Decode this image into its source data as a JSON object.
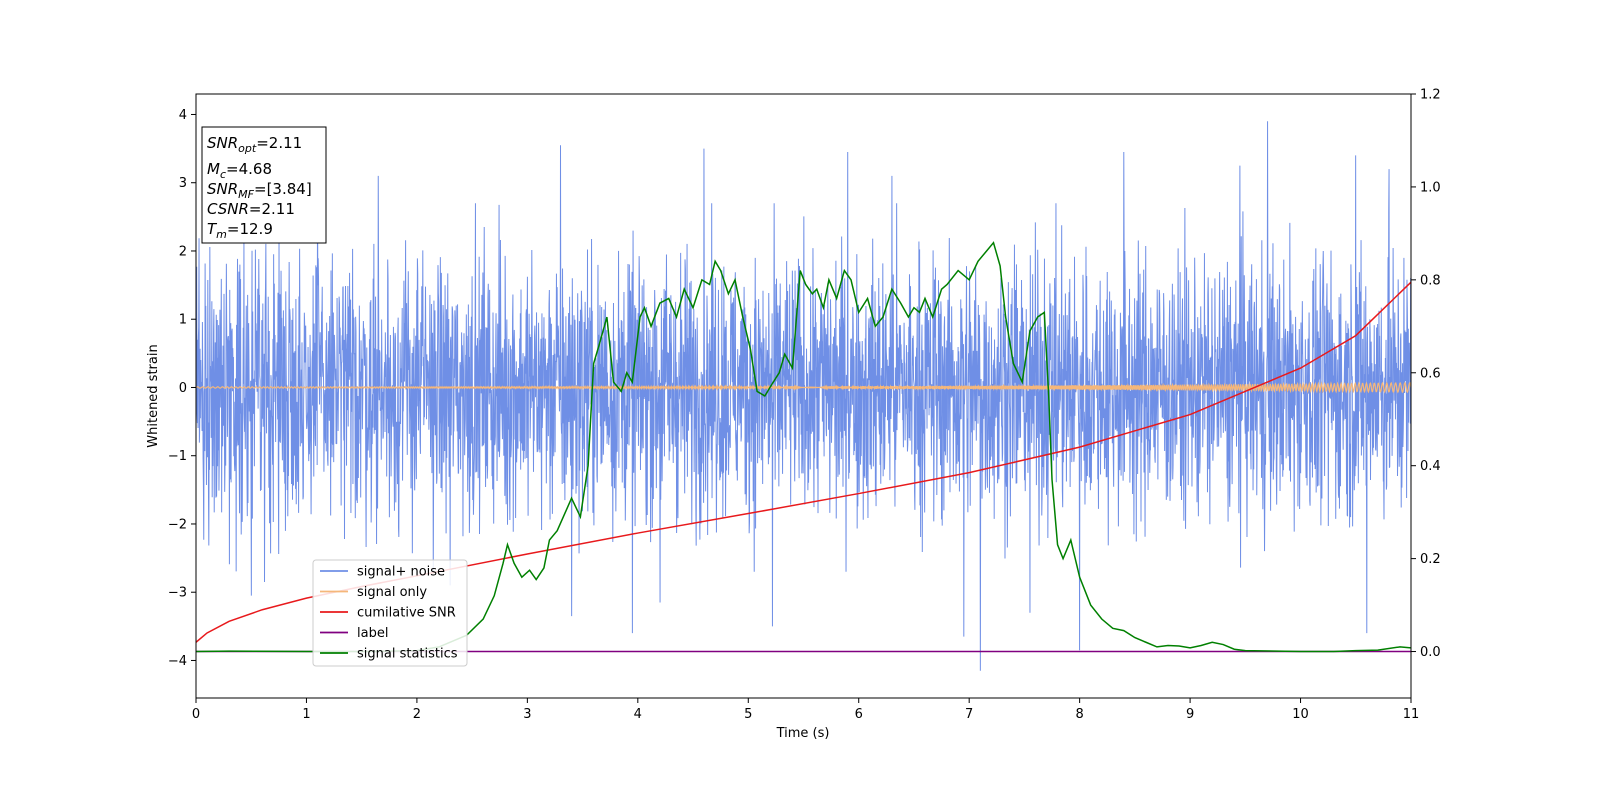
{
  "chart_data": {
    "type": "line",
    "title": "",
    "xlabel": "Time (s)",
    "ylabel": "Whitened strain",
    "xlim": [
      0,
      11
    ],
    "ylim": [
      -4.55,
      4.3
    ],
    "y2lim": [
      -0.1,
      1.2
    ],
    "xticks": [
      0,
      1,
      2,
      3,
      4,
      5,
      6,
      7,
      8,
      9,
      10,
      11
    ],
    "yticks": [
      -4,
      -3,
      -2,
      -1,
      0,
      1,
      2,
      3,
      4
    ],
    "y2ticks": [
      0.0,
      0.2,
      0.4,
      0.6,
      0.8,
      1.0,
      1.2
    ],
    "grid": false,
    "legend_position": "lower-left",
    "info_box": {
      "snr_opt": {
        "sym": "SNR",
        "sub": "opt",
        "text": "=2.11"
      },
      "mc": {
        "sym": "M",
        "sub": "c",
        "text": "=4.68"
      },
      "snr_mf": {
        "sym": "SNR",
        "sub": "MF",
        "text": "=[3.84]"
      },
      "csnr": {
        "sym": "CSNR",
        "text": "=2.11"
      },
      "tm": {
        "sym": "T",
        "sub": "m",
        "text": "=12.9"
      }
    },
    "series": [
      {
        "name": "signal+ noise",
        "color": "#6f8fe6",
        "axis": "left",
        "noise_envelope": 2.0,
        "spikes": [
          [
            0.5,
            -3.05
          ],
          [
            0.62,
            -2.85
          ],
          [
            1.1,
            2.85
          ],
          [
            1.65,
            3.1
          ],
          [
            2.3,
            -2.9
          ],
          [
            3.3,
            3.55
          ],
          [
            3.4,
            -3.35
          ],
          [
            3.95,
            -3.6
          ],
          [
            4.2,
            -3.15
          ],
          [
            4.6,
            3.5
          ],
          [
            5.22,
            -3.5
          ],
          [
            5.9,
            3.45
          ],
          [
            6.3,
            3.1
          ],
          [
            6.95,
            -3.65
          ],
          [
            7.1,
            -4.15
          ],
          [
            7.55,
            -3.3
          ],
          [
            8.0,
            -3.85
          ],
          [
            8.4,
            3.45
          ],
          [
            9.45,
            3.25
          ],
          [
            9.7,
            3.9
          ],
          [
            10.5,
            3.4
          ],
          [
            10.6,
            -3.6
          ],
          [
            10.8,
            3.2
          ]
        ]
      },
      {
        "name": "signal only",
        "color": "#f5b77a",
        "axis": "left",
        "amplitude_start": 0.01,
        "amplitude_end": 0.07
      },
      {
        "name": "cumilative SNR",
        "color": "#e8191c",
        "axis": "right",
        "x": [
          0,
          0.1,
          0.3,
          0.6,
          1,
          1.5,
          2,
          3,
          4,
          5,
          6,
          7,
          8,
          9,
          10,
          10.5,
          11
        ],
        "values": [
          0.02,
          0.04,
          0.065,
          0.09,
          0.115,
          0.14,
          0.163,
          0.21,
          0.255,
          0.297,
          0.34,
          0.385,
          0.44,
          0.51,
          0.61,
          0.68,
          0.795
        ]
      },
      {
        "name": "label",
        "color": "#800080",
        "axis": "right",
        "x": [
          0,
          11
        ],
        "values": [
          0.0,
          0.0
        ]
      },
      {
        "name": "signal statistics",
        "color": "#008000",
        "axis": "right",
        "x": [
          0,
          0.3,
          1.0,
          1.5,
          2.0,
          2.2,
          2.45,
          2.6,
          2.7,
          2.78,
          2.82,
          2.88,
          2.95,
          3.02,
          3.08,
          3.15,
          3.2,
          3.27,
          3.4,
          3.48,
          3.55,
          3.6,
          3.65,
          3.72,
          3.78,
          3.85,
          3.9,
          3.95,
          4.02,
          4.06,
          4.12,
          4.2,
          4.28,
          4.35,
          4.42,
          4.5,
          4.58,
          4.65,
          4.7,
          4.75,
          4.82,
          4.88,
          4.95,
          5.02,
          5.08,
          5.15,
          5.2,
          5.28,
          5.33,
          5.4,
          5.47,
          5.52,
          5.58,
          5.62,
          5.68,
          5.73,
          5.8,
          5.87,
          5.93,
          6.0,
          6.08,
          6.15,
          6.22,
          6.3,
          6.38,
          6.45,
          6.5,
          6.55,
          6.6,
          6.67,
          6.75,
          6.8,
          6.9,
          7.0,
          7.08,
          7.15,
          7.22,
          7.28,
          7.33,
          7.4,
          7.48,
          7.55,
          7.62,
          7.68,
          7.72,
          7.75,
          7.8,
          7.85,
          7.92,
          8.0,
          8.1,
          8.2,
          8.3,
          8.4,
          8.5,
          8.6,
          8.7,
          8.8,
          8.9,
          9.0,
          9.1,
          9.2,
          9.3,
          9.4,
          9.5,
          10.0,
          10.3,
          10.5,
          10.7,
          10.9,
          11.0
        ],
        "values": [
          0.0,
          0.001,
          0.0,
          0.0,
          0.002,
          0.01,
          0.035,
          0.07,
          0.12,
          0.19,
          0.23,
          0.19,
          0.16,
          0.175,
          0.155,
          0.18,
          0.24,
          0.26,
          0.33,
          0.29,
          0.4,
          0.62,
          0.66,
          0.72,
          0.58,
          0.56,
          0.6,
          0.58,
          0.72,
          0.74,
          0.7,
          0.75,
          0.76,
          0.72,
          0.78,
          0.74,
          0.8,
          0.79,
          0.84,
          0.82,
          0.77,
          0.8,
          0.72,
          0.65,
          0.56,
          0.55,
          0.57,
          0.6,
          0.64,
          0.61,
          0.82,
          0.79,
          0.77,
          0.78,
          0.74,
          0.8,
          0.76,
          0.82,
          0.8,
          0.73,
          0.76,
          0.7,
          0.72,
          0.78,
          0.75,
          0.72,
          0.74,
          0.73,
          0.76,
          0.72,
          0.78,
          0.79,
          0.82,
          0.8,
          0.84,
          0.86,
          0.88,
          0.83,
          0.72,
          0.62,
          0.58,
          0.69,
          0.72,
          0.73,
          0.55,
          0.37,
          0.23,
          0.2,
          0.24,
          0.16,
          0.1,
          0.07,
          0.05,
          0.045,
          0.03,
          0.02,
          0.01,
          0.013,
          0.012,
          0.008,
          0.013,
          0.02,
          0.015,
          0.005,
          0.002,
          0.0,
          0.0,
          0.002,
          0.003,
          0.01,
          0.008
        ]
      }
    ]
  }
}
